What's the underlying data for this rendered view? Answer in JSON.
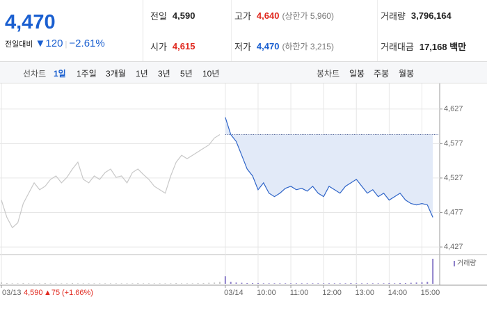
{
  "quote": {
    "price": "4,470",
    "change_label": "전일대비",
    "change": "120",
    "change_rate": "−2.61%"
  },
  "summary": [
    {
      "label": "전일",
      "value": "4,590"
    },
    {
      "label": "고가",
      "value": "4,640",
      "note": "(상한가 5,960)"
    },
    {
      "label": "거래량",
      "value": "3,796,164"
    },
    {
      "label": "시가",
      "value": "4,615"
    },
    {
      "label": "저가",
      "value": "4,470",
      "note": "(하한가 3,215)"
    },
    {
      "label": "거래대금",
      "value": "17,168 백만"
    }
  ],
  "tabs": {
    "line_label": "선차트",
    "line": [
      "1일",
      "1주일",
      "3개월",
      "1년",
      "3년",
      "5년",
      "10년"
    ],
    "candle_label": "봉차트",
    "candle": [
      "일봉",
      "주봉",
      "월봉"
    ]
  },
  "chart_data": {
    "type": "line",
    "categories": [
      "03/13",
      null,
      null,
      null,
      null,
      null,
      null,
      null,
      null,
      null,
      null,
      null,
      null,
      null,
      null,
      null,
      null,
      null,
      null,
      null,
      null,
      null,
      null,
      null,
      null,
      null,
      null,
      null,
      null,
      null,
      null,
      null,
      null,
      null,
      null,
      null,
      null,
      null,
      null,
      null,
      null,
      "03/14",
      null,
      null,
      null,
      null,
      null,
      "10:00",
      null,
      null,
      null,
      null,
      null,
      "11:00",
      null,
      null,
      null,
      null,
      null,
      "12:00",
      null,
      null,
      null,
      null,
      null,
      "13:00",
      null,
      null,
      null,
      null,
      null,
      "14:00",
      null,
      null,
      null,
      null,
      null,
      "15:00",
      null,
      null
    ],
    "series": [
      {
        "color": "#c8c8c8",
        "values": [
          4495,
          4470,
          4455,
          4462,
          4490,
          4505,
          4520,
          4510,
          4515,
          4525,
          4530,
          4520,
          4528,
          4540,
          4550,
          4525,
          4520,
          4530,
          4525,
          4535,
          4540,
          4528,
          4530,
          4520,
          4535,
          4540,
          4532,
          4525,
          4515,
          4510,
          4505,
          4530,
          4550,
          4560,
          4555,
          4560,
          4565,
          4570,
          4575,
          4585,
          4590,
          null,
          null,
          null,
          null,
          null,
          null,
          null,
          null,
          null,
          null,
          null,
          null,
          null,
          null,
          null,
          null,
          null,
          null,
          null,
          null,
          null,
          null,
          null,
          null,
          null,
          null,
          null,
          null,
          null,
          null,
          null,
          null,
          null,
          null,
          null,
          null,
          null,
          null,
          null
        ]
      },
      {
        "color": "#2e64c8",
        "values": [
          null,
          null,
          null,
          null,
          null,
          null,
          null,
          null,
          null,
          null,
          null,
          null,
          null,
          null,
          null,
          null,
          null,
          null,
          null,
          null,
          null,
          null,
          null,
          null,
          null,
          null,
          null,
          null,
          null,
          null,
          null,
          null,
          null,
          null,
          null,
          null,
          null,
          null,
          null,
          null,
          null,
          4615,
          4590,
          4580,
          4560,
          4540,
          4530,
          4510,
          4520,
          4505,
          4500,
          4505,
          4512,
          4515,
          4510,
          4512,
          4508,
          4515,
          4505,
          4500,
          4515,
          4510,
          4505,
          4515,
          4520,
          4525,
          4515,
          4505,
          4510,
          4500,
          4505,
          4495,
          4500,
          4505,
          4495,
          4490,
          4488,
          4490,
          4488,
          4470
        ]
      }
    ],
    "reference": 4590,
    "ylim": [
      4417,
      4654
    ],
    "yticks": [
      {
        "value": 4427,
        "label": "4,427"
      },
      {
        "value": 4477,
        "label": "4,477"
      },
      {
        "value": 4527,
        "label": "4,527"
      },
      {
        "value": 4577,
        "label": "4,577"
      },
      {
        "value": 4627,
        "label": "4,627"
      }
    ],
    "grid": true,
    "volume": {
      "label": "거래량",
      "color": "#8c7ec9",
      "ylim": [
        0,
        100
      ],
      "values": [
        6,
        3,
        2,
        2,
        3,
        2,
        2,
        2,
        3,
        2,
        2,
        2,
        2,
        3,
        2,
        2,
        2,
        2,
        2,
        2,
        2,
        2,
        2,
        2,
        2,
        3,
        2,
        2,
        2,
        2,
        2,
        2,
        3,
        2,
        2,
        2,
        3,
        3,
        4,
        5,
        8,
        30,
        8,
        5,
        4,
        3,
        3,
        3,
        2,
        2,
        2,
        2,
        2,
        2,
        2,
        2,
        2,
        2,
        2,
        2,
        2,
        2,
        2,
        2,
        3,
        2,
        2,
        2,
        2,
        2,
        2,
        3,
        2,
        3,
        3,
        4,
        5,
        6,
        8,
        100
      ]
    },
    "footer": {
      "price": "4,590",
      "change": "▲75",
      "rate": "(+1.66%)"
    }
  }
}
